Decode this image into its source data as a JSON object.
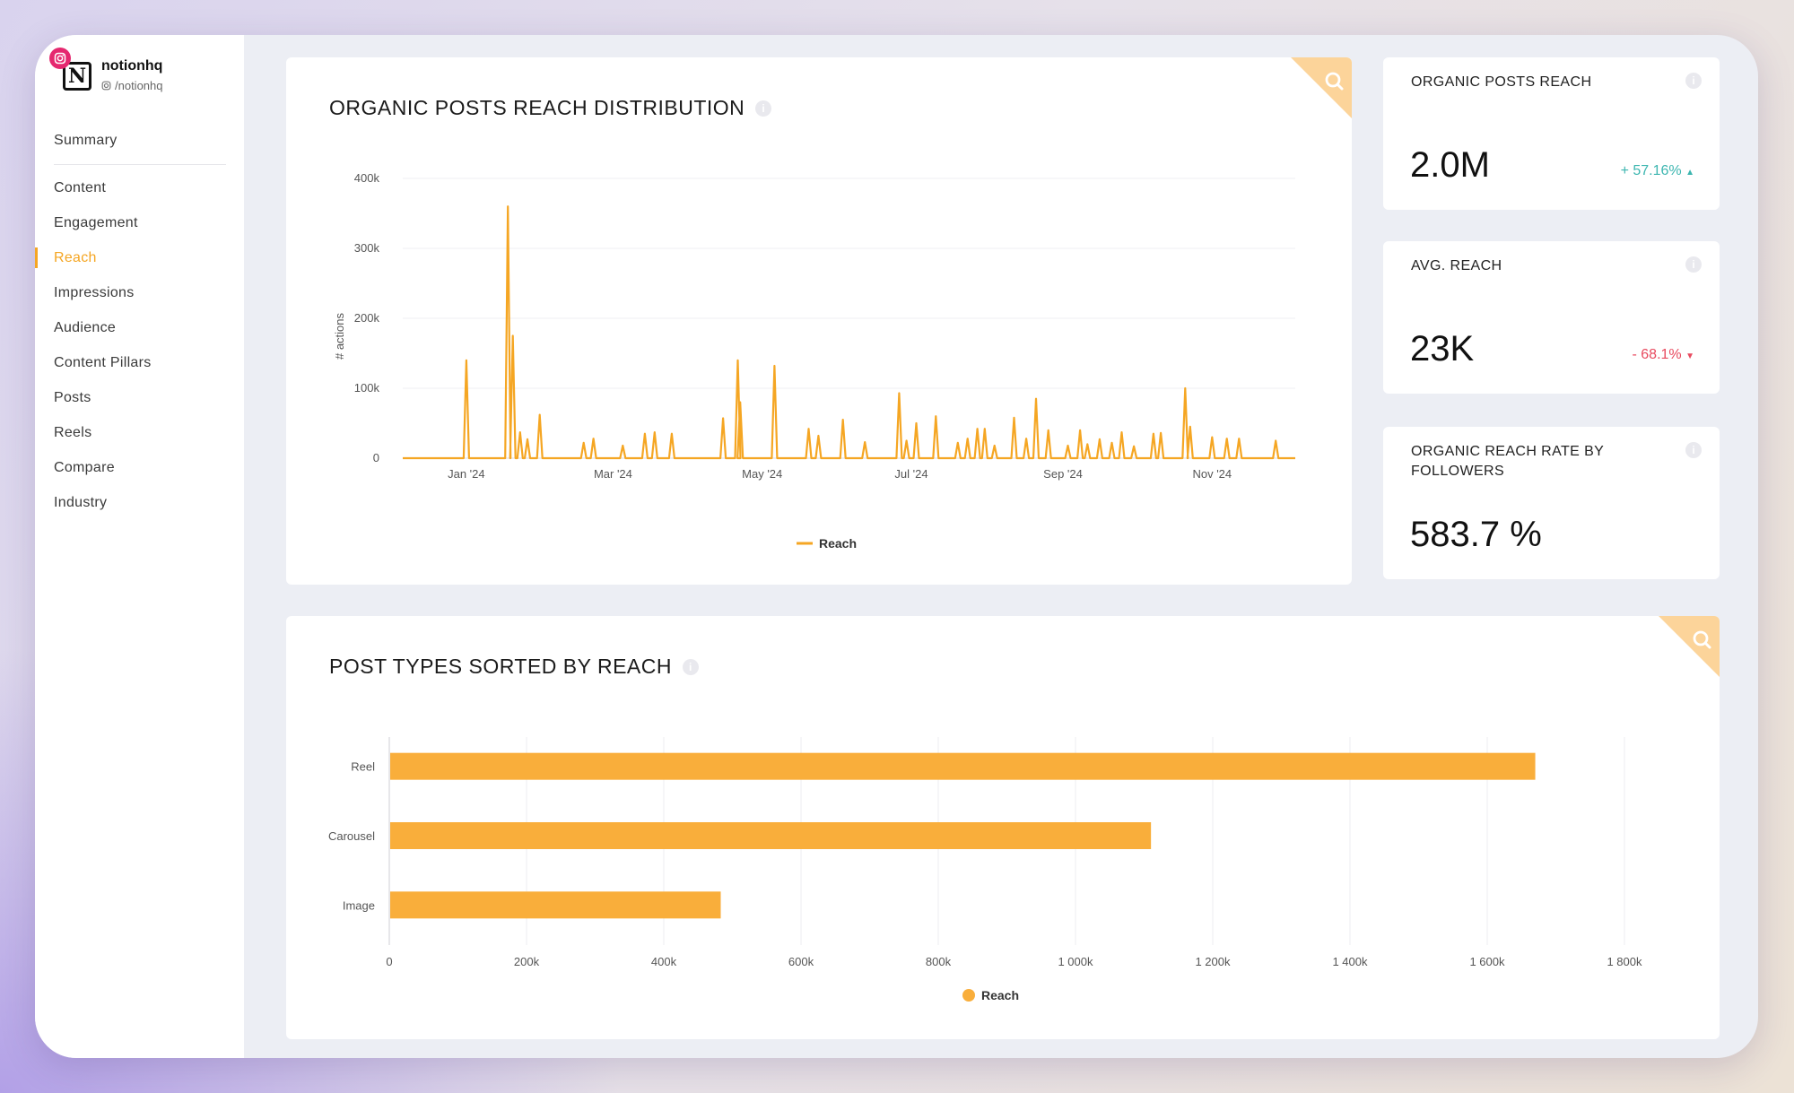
{
  "profile": {
    "name": "notionhq",
    "handle": "/notionhq",
    "logo_letter": "N",
    "platform_icon": "instagram-icon",
    "badge_color": "#e5286f"
  },
  "nav": {
    "summary": "Summary",
    "items": [
      {
        "label": "Content"
      },
      {
        "label": "Engagement"
      },
      {
        "label": "Reach",
        "active": true
      },
      {
        "label": "Impressions"
      },
      {
        "label": "Audience"
      },
      {
        "label": "Content Pillars"
      },
      {
        "label": "Posts"
      },
      {
        "label": "Reels"
      },
      {
        "label": "Compare"
      },
      {
        "label": "Industry"
      }
    ]
  },
  "reach_distribution": {
    "title": "ORGANIC POSTS REACH DISTRIBUTION",
    "info_icon": "info-icon",
    "search_icon": "search-icon"
  },
  "post_types": {
    "title": "POST TYPES SORTED BY REACH",
    "info_icon": "info-icon",
    "search_icon": "search-icon"
  },
  "kpis": {
    "organic_reach": {
      "title": "ORGANIC POSTS REACH",
      "value": "2.0M",
      "change": "+ 57.16%",
      "direction": "up"
    },
    "avg_reach": {
      "title": "AVG. REACH",
      "value": "23K",
      "change": "- 68.1%",
      "direction": "down"
    },
    "reach_rate": {
      "title": "ORGANIC REACH RATE BY FOLLOWERS",
      "value": "583.7 %"
    }
  },
  "colors": {
    "accent": "#f5a623",
    "bar": "#f9ae3b",
    "positive": "#3db6b0",
    "negative": "#e84a5f"
  },
  "chart_data": [
    {
      "type": "line",
      "ylabel": "# actions",
      "ylim": [
        0,
        400000
      ],
      "yticks": [
        0,
        100000,
        200000,
        300000,
        400000
      ],
      "ytick_labels": [
        "0",
        "100k",
        "200k",
        "300k",
        "400k"
      ],
      "xlim": [
        "2023-12-06",
        "2024-12-05"
      ],
      "xticks": [
        "2024-01-01",
        "2024-03-01",
        "2024-05-01",
        "2024-07-01",
        "2024-09-01",
        "2024-11-01"
      ],
      "xtick_labels": [
        "Jan '24",
        "Mar '24",
        "May '24",
        "Jul '24",
        "Sep '24",
        "Nov '24"
      ],
      "legend": "bottom",
      "grid": true,
      "series": [
        {
          "name": "Reach",
          "color": "#f5a623",
          "points": [
            [
              "2023-12-06",
              0
            ],
            [
              "2024-01-01",
              140000
            ],
            [
              "2024-01-18",
              360000
            ],
            [
              "2024-01-20",
              175000
            ],
            [
              "2024-01-23",
              37000
            ],
            [
              "2024-01-26",
              27000
            ],
            [
              "2024-01-31",
              62000
            ],
            [
              "2024-02-18",
              22000
            ],
            [
              "2024-02-22",
              28000
            ],
            [
              "2024-03-05",
              18000
            ],
            [
              "2024-03-14",
              35000
            ],
            [
              "2024-03-18",
              37000
            ],
            [
              "2024-03-25",
              35000
            ],
            [
              "2024-04-15",
              57000
            ],
            [
              "2024-04-21",
              140000
            ],
            [
              "2024-04-22",
              80000
            ],
            [
              "2024-05-06",
              132000
            ],
            [
              "2024-05-20",
              42000
            ],
            [
              "2024-05-24",
              32000
            ],
            [
              "2024-06-03",
              55000
            ],
            [
              "2024-06-12",
              23000
            ],
            [
              "2024-06-26",
              93000
            ],
            [
              "2024-06-29",
              25000
            ],
            [
              "2024-07-03",
              50000
            ],
            [
              "2024-07-11",
              60000
            ],
            [
              "2024-07-20",
              22000
            ],
            [
              "2024-07-24",
              28000
            ],
            [
              "2024-07-28",
              42000
            ],
            [
              "2024-07-31",
              42000
            ],
            [
              "2024-08-04",
              18000
            ],
            [
              "2024-08-12",
              58000
            ],
            [
              "2024-08-17",
              28000
            ],
            [
              "2024-08-21",
              85000
            ],
            [
              "2024-08-26",
              40000
            ],
            [
              "2024-09-03",
              18000
            ],
            [
              "2024-09-08",
              40000
            ],
            [
              "2024-09-11",
              20000
            ],
            [
              "2024-09-16",
              27000
            ],
            [
              "2024-09-21",
              22000
            ],
            [
              "2024-09-25",
              37000
            ],
            [
              "2024-09-30",
              17000
            ],
            [
              "2024-10-08",
              35000
            ],
            [
              "2024-10-11",
              36000
            ],
            [
              "2024-10-21",
              100000
            ],
            [
              "2024-10-23",
              45000
            ],
            [
              "2024-11-01",
              30000
            ],
            [
              "2024-11-07",
              28000
            ],
            [
              "2024-11-12",
              28000
            ],
            [
              "2024-11-27",
              25000
            ],
            [
              "2024-12-05",
              0
            ]
          ]
        }
      ]
    },
    {
      "type": "bar",
      "orientation": "horizontal",
      "categories": [
        "Reel",
        "Carousel",
        "Image"
      ],
      "series": [
        {
          "name": "Reach",
          "values": [
            1670000,
            1110000,
            483000
          ],
          "color": "#f9ae3b"
        }
      ],
      "xlim": [
        0,
        1800000
      ],
      "xticks": [
        0,
        200000,
        400000,
        600000,
        800000,
        1000000,
        1200000,
        1400000,
        1600000,
        1800000
      ],
      "xtick_labels": [
        "0",
        "200k",
        "400k",
        "600k",
        "800k",
        "1 000k",
        "1 200k",
        "1 400k",
        "1 600k",
        "1 800k"
      ],
      "legend": "bottom",
      "grid": true
    }
  ]
}
